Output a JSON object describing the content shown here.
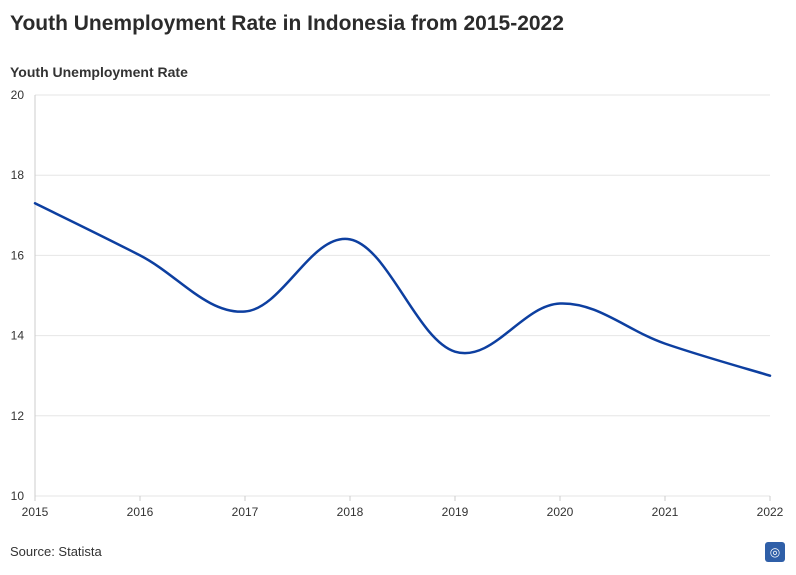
{
  "header": {
    "title": "Youth Unemployment Rate in Indonesia from 2015-2022",
    "y_axis_title": "Youth Unemployment Rate"
  },
  "footer": {
    "source": "Source: Statista",
    "logo_icon": "statista-globe-icon"
  },
  "colors": {
    "line": "#0d3fa0",
    "grid": "#e6e6e6",
    "axis": "#cccccc"
  },
  "chart_data": {
    "type": "line",
    "title": "Youth Unemployment Rate in Indonesia from 2015-2022",
    "xlabel": "",
    "ylabel": "Youth Unemployment Rate",
    "x": [
      2015,
      2016,
      2017,
      2018,
      2019,
      2020,
      2021,
      2022
    ],
    "series": [
      {
        "values": [
          17.3,
          16.0,
          14.6,
          16.4,
          13.6,
          14.8,
          13.8,
          13.0
        ]
      }
    ],
    "ylim": [
      10,
      20
    ],
    "yticks": [
      10,
      12,
      14,
      16,
      18,
      20
    ],
    "xticks": [
      2015,
      2016,
      2017,
      2018,
      2019,
      2020,
      2021,
      2022
    ],
    "grid": true,
    "legend": "none"
  }
}
